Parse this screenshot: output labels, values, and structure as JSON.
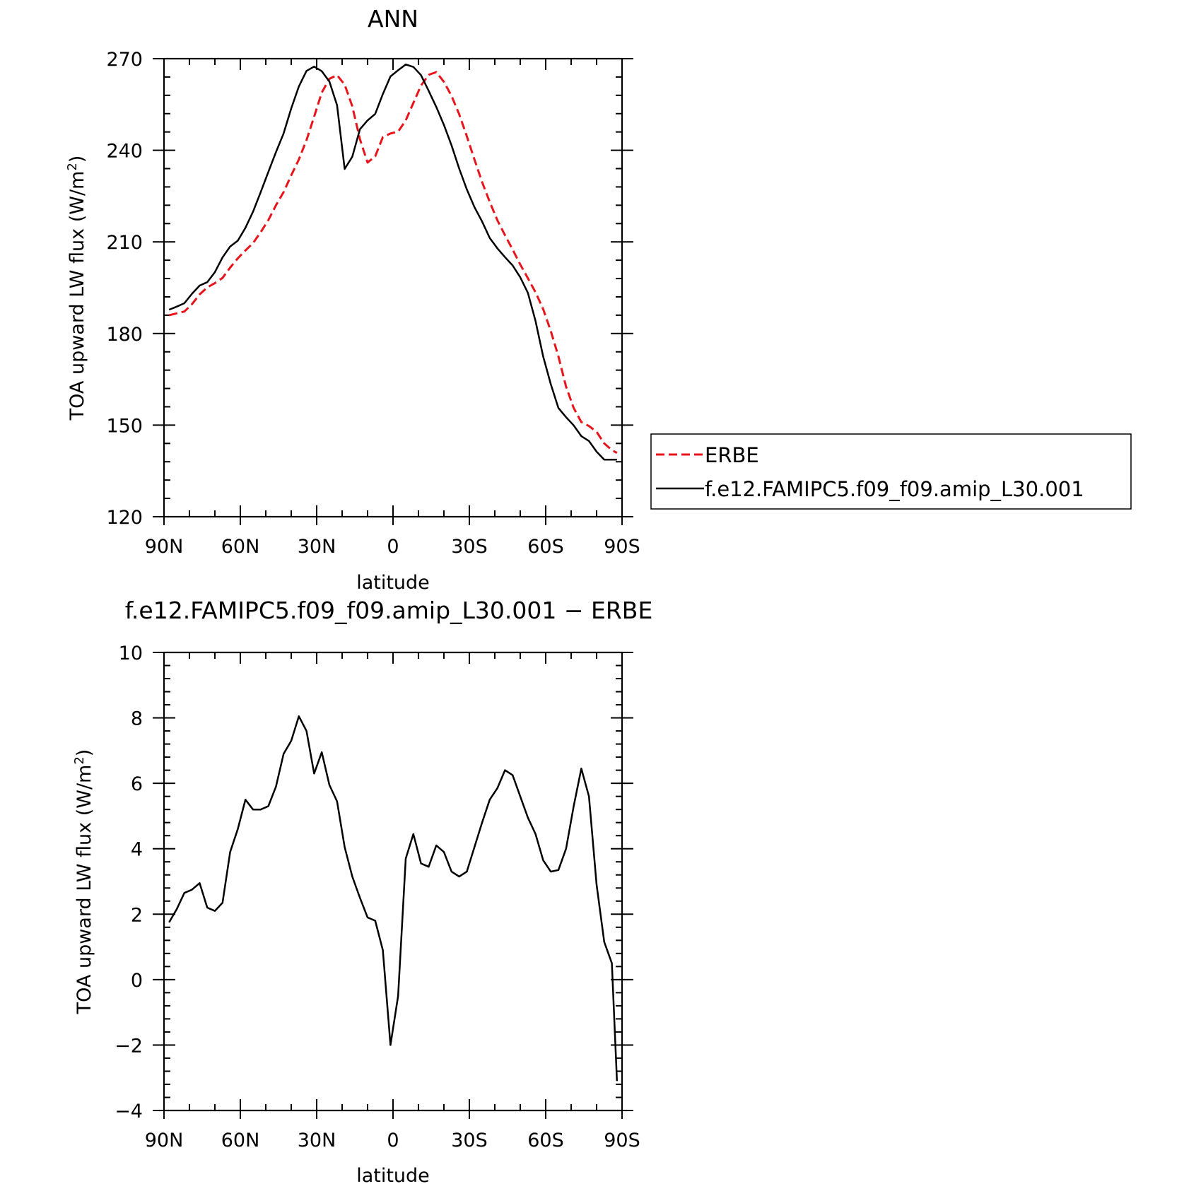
{
  "chart_data": [
    {
      "type": "line",
      "title": "ANN",
      "xlabel": "latitude",
      "ylabel": "TOA upward LW flux (W/m",
      "ylabel_sup": "2",
      "ylabel_close": ")",
      "xlim": [
        90,
        -90
      ],
      "ylim": [
        120,
        270
      ],
      "x_ticks": [
        90,
        60,
        30,
        0,
        -30,
        -60,
        -90
      ],
      "x_tick_labels": [
        "90N",
        "60N",
        "30N",
        "0",
        "30S",
        "60S",
        "90S"
      ],
      "y_ticks": [
        120,
        150,
        180,
        210,
        240,
        270
      ],
      "y_tick_labels": [
        "120",
        "150",
        "180",
        "210",
        "240",
        "270"
      ],
      "legend": {
        "placement": "right",
        "entries": [
          "ERBE",
          "f.e12.FAMIPC5.f09_f09.amip_L30.001"
        ]
      },
      "x": [
        88,
        85,
        82,
        79,
        76,
        73,
        70,
        67,
        64,
        61,
        58,
        55,
        52,
        49,
        46,
        43,
        40,
        37,
        34,
        31,
        28,
        25,
        22,
        19,
        16,
        13,
        10,
        7,
        4,
        1,
        -2,
        -5,
        -8,
        -11,
        -14,
        -17,
        -20,
        -23,
        -26,
        -29,
        -32,
        -35,
        -38,
        -41,
        -44,
        -47,
        -50,
        -53,
        -56,
        -59,
        -62,
        -65,
        -68,
        -71,
        -74,
        -77,
        -80,
        -83,
        -86,
        -88
      ],
      "series": [
        {
          "name": "ERBE",
          "color": "#e8141b",
          "dash": "dashed",
          "values": [
            186,
            186.6,
            187.2,
            189.6,
            192.8,
            195.1,
            196.5,
            198.2,
            201.6,
            204.6,
            207.2,
            209.6,
            213.2,
            217.1,
            222.0,
            226.3,
            231.8,
            237.0,
            243.3,
            251.0,
            258.9,
            263.4,
            264.6,
            261.5,
            254.4,
            243.6,
            236.0,
            238.0,
            244.3,
            245.5,
            246.1,
            249.8,
            255.5,
            261.2,
            264.7,
            265.6,
            262.4,
            257.8,
            251.8,
            244.6,
            237.0,
            229.6,
            223.1,
            217.1,
            212.2,
            207.5,
            202.6,
            198.1,
            193.5,
            188.0,
            180.8,
            172.5,
            162.6,
            155.6,
            151.0,
            149.7,
            147.8,
            144.0,
            141.8,
            140.9
          ]
        },
        {
          "name": "f.e12.FAMIPC5.f09_f09.amip_L30.001",
          "color": "#000000",
          "dash": "solid",
          "values": [
            187.8,
            188.8,
            189.9,
            193.0,
            195.7,
            196.8,
            200.1,
            204.9,
            208.5,
            210.4,
            214.6,
            219.9,
            226.3,
            232.9,
            239.4,
            245.5,
            253.7,
            260.9,
            266.0,
            267.4,
            265.9,
            262.5,
            254.8,
            233.9,
            237.9,
            246.9,
            249.8,
            251.9,
            258.4,
            264.2,
            266.2,
            268.1,
            267.3,
            264.6,
            259.5,
            254.2,
            248.3,
            241.6,
            234.0,
            227.2,
            221.4,
            216.7,
            211.3,
            207.9,
            205.0,
            202.3,
            198.4,
            193.3,
            184.1,
            172.5,
            163.4,
            155.6,
            152.6,
            149.9,
            146.4,
            144.8,
            141.3,
            138.7,
            138.7,
            138.7
          ]
        }
      ]
    },
    {
      "type": "line",
      "title": "f.e12.FAMIPC5.f09_f09.amip_L30.001 − ERBE",
      "xlabel": "latitude",
      "ylabel": "TOA upward LW flux (W/m",
      "ylabel_sup": "2",
      "ylabel_close": ")",
      "xlim": [
        90,
        -90
      ],
      "ylim": [
        -4,
        10
      ],
      "x_ticks": [
        90,
        60,
        30,
        0,
        -30,
        -60,
        -90
      ],
      "x_tick_labels": [
        "90N",
        "60N",
        "30N",
        "0",
        "30S",
        "60S",
        "90S"
      ],
      "y_ticks": [
        -4,
        -2,
        0,
        2,
        4,
        6,
        8,
        10
      ],
      "y_tick_labels": [
        "−4",
        "−2",
        "0",
        "2",
        "4",
        "6",
        "8",
        "10"
      ],
      "x": [
        88,
        85,
        82,
        79,
        76,
        73,
        70,
        67,
        64,
        61,
        58,
        55,
        52,
        49,
        46,
        43,
        40,
        37,
        34,
        31,
        28,
        25,
        22,
        19,
        16,
        13,
        10,
        7,
        4,
        1,
        -2,
        -5,
        -8,
        -11,
        -14,
        -17,
        -20,
        -23,
        -26,
        -29,
        -32,
        -35,
        -38,
        -41,
        -44,
        -47,
        -50,
        -53,
        -56,
        -59,
        -62,
        -65,
        -68,
        -71,
        -74,
        -77,
        -80,
        -83,
        -86,
        -88
      ],
      "series": [
        {
          "color": "#000000",
          "dash": "solid",
          "values": [
            1.75,
            2.15,
            2.65,
            2.75,
            2.95,
            2.2,
            2.1,
            2.35,
            3.9,
            4.6,
            5.5,
            5.2,
            5.2,
            5.3,
            5.9,
            6.9,
            7.3,
            8.05,
            7.6,
            6.3,
            6.95,
            5.95,
            5.45,
            4.05,
            3.15,
            2.5,
            1.9,
            1.8,
            0.9,
            -2.0,
            -0.5,
            3.7,
            4.45,
            3.55,
            3.45,
            4.1,
            3.9,
            3.3,
            3.15,
            3.3,
            4.05,
            4.8,
            5.5,
            5.85,
            6.4,
            6.25,
            5.6,
            4.95,
            4.45,
            3.65,
            3.3,
            3.35,
            4.0,
            5.3,
            6.45,
            5.6,
            2.9,
            1.15,
            0.5,
            -3.1
          ]
        }
      ]
    }
  ]
}
